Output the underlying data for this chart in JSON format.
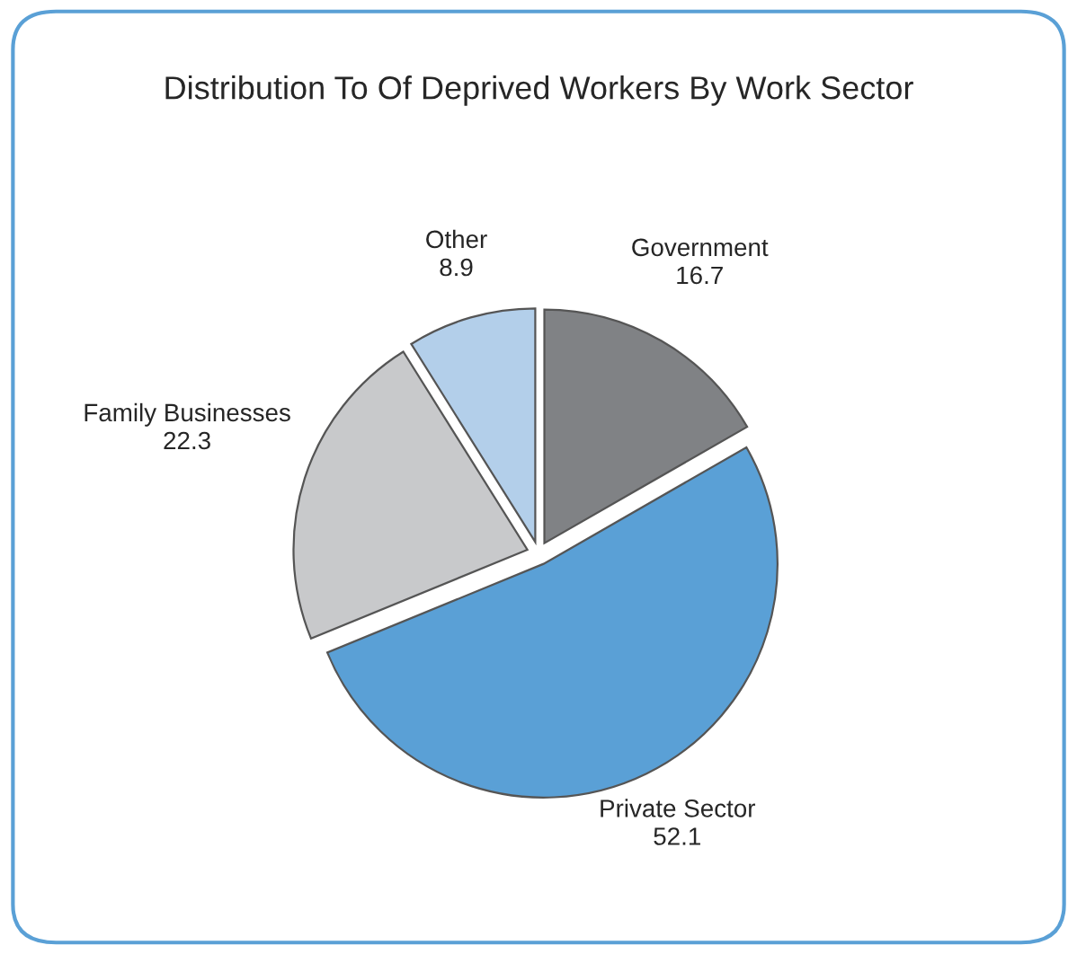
{
  "chart_data": {
    "type": "pie",
    "title": "Distribution To Of Deprived Workers By Work Sector",
    "categories": [
      "Government",
      "Private Sector",
      "Family Businesses",
      "Other"
    ],
    "values": [
      16.7,
      52.1,
      22.3,
      8.9
    ],
    "colors": [
      "#808285",
      "#5aa0d6",
      "#c8c9cb",
      "#b3cfea"
    ],
    "data_labels": true
  }
}
